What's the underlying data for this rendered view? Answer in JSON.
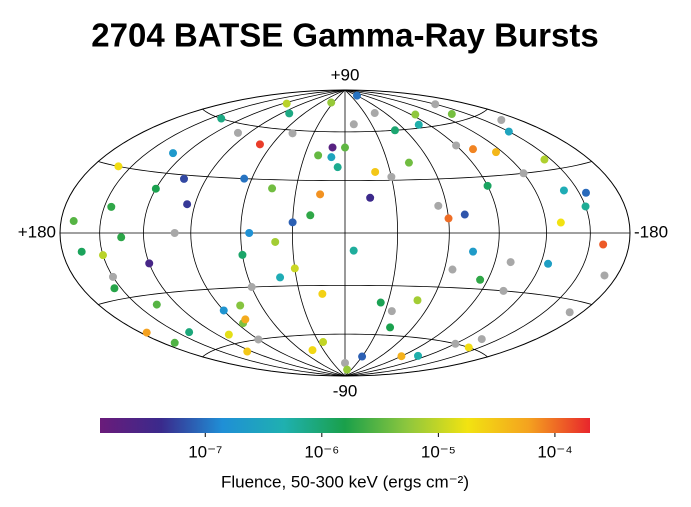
{
  "chart_data": {
    "type": "scatter",
    "projection": "hammer-aitoff",
    "title": "2704 BATSE Gamma-Ray Bursts",
    "xlim": [
      180,
      -180
    ],
    "ylim": [
      -90,
      90
    ],
    "xticks": [
      {
        "value": 180,
        "label": "+180"
      },
      {
        "value": -180,
        "label": "-180"
      }
    ],
    "yticks": [
      {
        "value": 90,
        "label": "+90"
      },
      {
        "value": -90,
        "label": "-90"
      }
    ],
    "xgrid": [
      -150,
      -120,
      -90,
      -60,
      -30,
      0,
      30,
      60,
      90,
      120,
      150
    ],
    "ygrid": [
      -60,
      -30,
      0,
      30,
      60
    ],
    "x": [
      170,
      150,
      130,
      110,
      95,
      80,
      60,
      45,
      25,
      10,
      -5,
      -20,
      -35,
      -50,
      -70,
      -85,
      -100,
      -120,
      -140,
      -160,
      160,
      140,
      120,
      100,
      75,
      55,
      35,
      15,
      -10,
      -30,
      -45,
      -65,
      -90,
      -110,
      -130,
      -150,
      -170,
      175,
      145,
      115,
      90,
      65,
      40,
      20,
      0,
      -15,
      -40,
      -60,
      -80,
      -105,
      -125,
      -145,
      -165,
      155,
      125,
      105,
      85,
      50,
      30,
      5,
      -25,
      -55,
      -75,
      -95,
      -115,
      -135,
      -155,
      165,
      135,
      70,
      100,
      20,
      -10,
      -60,
      -100,
      140,
      -140,
      40,
      -30,
      80,
      60,
      -120,
      10,
      -50,
      120,
      -170,
      170,
      -90,
      30,
      -150,
      0,
      90,
      -90,
      150,
      -150,
      45,
      -45,
      135,
      -135,
      15
    ],
    "y": [
      5,
      -20,
      40,
      -55,
      15,
      70,
      -30,
      25,
      -65,
      50,
      -10,
      35,
      -45,
      60,
      10,
      -25,
      45,
      -60,
      20,
      -5,
      30,
      -50,
      -15,
      55,
      -40,
      0,
      80,
      -35,
      65,
      -75,
      40,
      -20,
      25,
      -70,
      5,
      50,
      -35,
      -45,
      12,
      75,
      -60,
      30,
      -5,
      45,
      -80,
      20,
      -55,
      8,
      62,
      -30,
      -15,
      35,
      55,
      -25,
      -65,
      28,
      -50,
      58,
      -20,
      38,
      -40,
      15,
      -10,
      68,
      42,
      -55,
      18,
      -8,
      -35,
      50,
      0,
      10,
      -85,
      85,
      -15,
      60,
      -60,
      -25,
      32,
      -48,
      -12,
      30,
      44,
      -38,
      22,
      -18,
      -52,
      -72,
      6,
      70,
      50,
      -42,
      48,
      -10,
      12,
      -70,
      72,
      -2,
      64,
      22
    ],
    "fluence": [
      3e-06,
      null,
      2e-07,
      1.5e-05,
      5e-08,
      8e-07,
      null,
      4e-06,
      1e-05,
      2e-08,
      6e-07,
      3e-05,
      null,
      1e-06,
      7e-08,
      2e-06,
      8e-05,
      null,
      4e-07,
      0.00012,
      2e-05,
      9e-07,
      3e-08,
      null,
      5e-06,
      1.5e-07,
      6e-06,
      2.5e-05,
      null,
      8e-08,
      4e-06,
      null,
      1.2e-06,
      5e-07,
      1.8e-05,
      3e-07,
      null,
      6e-05,
      2e-06,
      9e-06,
      null,
      1e-07,
      7e-06,
      3.5e-06,
      null,
      4e-08,
      1.5e-06,
      0.0001,
      5e-07,
      null,
      2.5e-07,
      8e-06,
      null,
      1.8e-06,
      3e-05,
      6e-08,
      4.5e-06,
      null,
      1.1e-05,
      7e-07,
      1.4e-06,
      null,
      2.2e-07,
      5.5e-06,
      4e-05,
      null,
      9e-08,
      1.3e-06,
      3e-06,
      0.00016,
      null,
      2e-06,
      6e-06,
      1e-07,
      null,
      8e-07,
      2e-05,
      4e-07,
      null,
      5e-05,
      1.1e-06,
      null,
      3e-07,
      7e-06,
      1.5e-06,
      null,
      2.8e-06,
      4.5e-05,
      8e-08,
      null,
      3.3e-06,
      1.7e-07,
      null,
      9e-06,
      6.5e-07,
      2.2e-05,
      null,
      1.9e-06,
      4.2e-06,
      7e-05
    ],
    "missing_color": "#a8a8a8",
    "colorbar": {
      "label": "Fluence, 50-300 keV (ergs cm⁻²)",
      "log": true,
      "clim": [
        1.25e-08,
        0.0002
      ],
      "ticks": [
        {
          "value": 1e-07,
          "label": "10⁻⁷"
        },
        {
          "value": 1e-06,
          "label": "10⁻⁶"
        },
        {
          "value": 1e-05,
          "label": "10⁻⁵"
        },
        {
          "value": 0.0001,
          "label": "10⁻⁴"
        }
      ],
      "colormap": [
        "#6a1b7a",
        "#3a2a8c",
        "#1f8fd6",
        "#1fb0b0",
        "#1aa04a",
        "#8cc63e",
        "#f2e311",
        "#f4a21f",
        "#e8262c"
      ]
    }
  }
}
